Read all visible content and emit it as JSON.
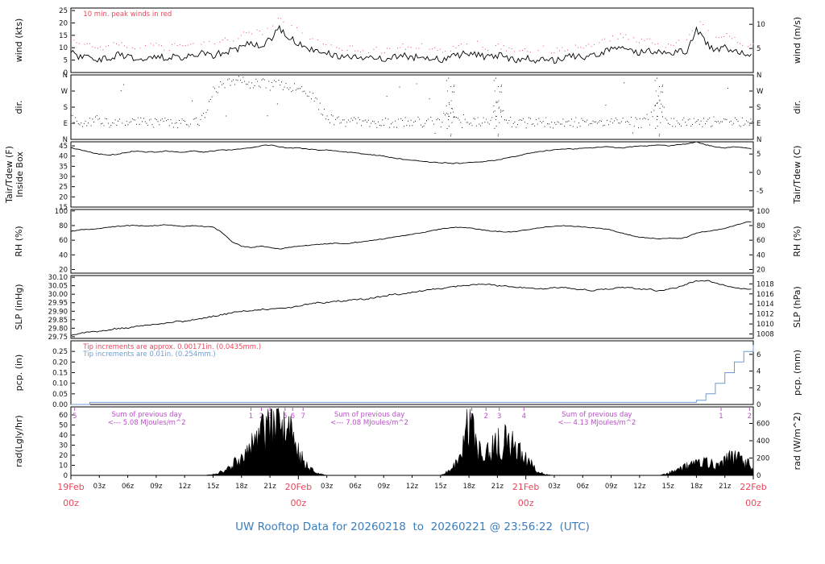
{
  "figure": {
    "title": "UW Rooftop Data for 20260218  to  20260221 @ 23:56:22  (UTC)",
    "title_color": "#3a7dbd",
    "background": "#ffffff"
  },
  "x_axis": {
    "days": [
      "19Feb",
      "20Feb",
      "21Feb",
      "22Feb"
    ],
    "day_hours": [
      0,
      24,
      48,
      72
    ],
    "day_sub": "00z",
    "hour_labels": [
      "03z",
      "06z",
      "09z",
      "12z",
      "15z",
      "18z",
      "21z"
    ],
    "hour_offsets": [
      3,
      6,
      9,
      12,
      15,
      18,
      21
    ],
    "day_color": "#e8485c",
    "hour_color": "#1a1a1a",
    "total_hours": 72
  },
  "chart_data": [
    {
      "id": "wind",
      "type": "line",
      "label_left": "wind (kts)",
      "label_right": "wind (m/s)",
      "ylim": [
        0,
        26
      ],
      "ticks_left": {
        "values": [
          0,
          5,
          10,
          15,
          20,
          25
        ],
        "labels": [
          "0",
          "5",
          "10",
          "15",
          "20",
          "25"
        ]
      },
      "ticks_right": {
        "values": [
          9.72,
          19.44
        ],
        "labels": [
          "5",
          "10"
        ]
      },
      "annotations": [
        {
          "text": "10 min. peak winds in red",
          "color": "#e8485c",
          "x_hour": 1.3,
          "row": 0
        }
      ],
      "series": [
        {
          "name": "wind-speed",
          "color": "#000000",
          "draw": "noisy-line",
          "jitter": 1.4,
          "values": [
            8,
            6,
            7,
            5,
            6,
            7,
            6,
            5,
            6,
            7,
            6,
            7,
            6,
            7,
            8,
            7,
            8,
            9,
            10,
            12,
            11,
            13,
            18,
            14,
            12,
            10,
            9,
            8,
            7,
            6,
            6,
            5,
            6,
            5,
            6,
            7,
            6,
            7,
            6,
            5,
            6,
            7,
            8,
            7,
            6,
            7,
            6,
            5,
            6,
            5,
            6,
            5,
            6,
            7,
            6,
            7,
            8,
            9,
            10,
            9,
            8,
            9,
            8,
            7,
            8,
            9,
            17,
            12,
            9,
            10,
            9,
            8,
            7
          ]
        },
        {
          "name": "peak-wind",
          "color": "#e8485c",
          "draw": "dots",
          "jitter": 1.2,
          "values": [
            12,
            10,
            10,
            9,
            10,
            11,
            9,
            8,
            10,
            11,
            9,
            10,
            9,
            11,
            12,
            10,
            12,
            13,
            14,
            16,
            15,
            17,
            22,
            18,
            16,
            14,
            12,
            11,
            10,
            9,
            9,
            8,
            9,
            8,
            9,
            10,
            9,
            10,
            9,
            8,
            9,
            10,
            12,
            11,
            9,
            10,
            9,
            8,
            9,
            8,
            9,
            8,
            9,
            10,
            9,
            10,
            12,
            13,
            14,
            13,
            12,
            13,
            11,
            10,
            12,
            13,
            21,
            16,
            13,
            14,
            13,
            11,
            10
          ]
        }
      ]
    },
    {
      "id": "dir",
      "type": "scatter",
      "label_left": "dir.",
      "label_right": "dir.",
      "ylim": [
        0,
        360
      ],
      "ticks_left": {
        "values": [
          0,
          90,
          180,
          270,
          360
        ],
        "labels": [
          "N",
          "E",
          "S",
          "W",
          "N"
        ]
      },
      "ticks_right": {
        "values": [
          0,
          90,
          180,
          270,
          360
        ],
        "labels": [
          "N",
          "E",
          "S",
          "W",
          "N"
        ]
      },
      "series": [
        {
          "name": "wind-direction",
          "color": "#000000",
          "draw": "scatter",
          "jitter": 28,
          "variable_hours": [
            40,
            45,
            62
          ],
          "values": [
            120,
            100,
            95,
            110,
            90,
            100,
            95,
            105,
            90,
            95,
            100,
            90,
            95,
            100,
            110,
            280,
            300,
            320,
            330,
            310,
            320,
            300,
            310,
            290,
            280,
            260,
            200,
            120,
            100,
            90,
            95,
            100,
            90,
            95,
            90,
            100,
            95,
            90,
            100,
            95,
            180,
            90,
            95,
            100,
            90,
            200,
            100,
            95,
            90,
            100,
            95,
            90,
            100,
            95,
            90,
            100,
            95,
            90,
            95,
            100,
            90,
            95,
            250,
            90,
            95,
            100,
            90,
            95,
            100,
            90,
            95,
            100,
            90
          ]
        }
      ]
    },
    {
      "id": "tair",
      "type": "line",
      "label_left": "Tair/Tdew (F)",
      "label_left2": "Inside Box",
      "label_right": "Tair/Tdew (C)",
      "ylim": [
        15,
        47
      ],
      "ticks_left": {
        "values": [
          15,
          20,
          25,
          30,
          35,
          40,
          45
        ],
        "labels": [
          "15",
          "20",
          "25",
          "30",
          "35",
          "40",
          "45"
        ]
      },
      "ticks_right": {
        "values": [
          23,
          32,
          41
        ],
        "labels": [
          "-5",
          "0",
          "5"
        ]
      },
      "series": [
        {
          "name": "air-temperature",
          "color": "#000000",
          "draw": "noisy-line",
          "jitter": 0.2,
          "values": [
            44,
            43,
            42,
            41,
            40.5,
            41,
            42,
            42.5,
            42,
            42,
            42.5,
            42,
            42,
            42.5,
            42,
            42.5,
            43,
            43,
            43.5,
            44,
            45,
            45.5,
            44.5,
            44,
            44,
            43.5,
            43,
            43,
            42.5,
            42,
            41.5,
            41,
            40.5,
            40,
            39,
            38.5,
            38,
            37.5,
            37,
            36.8,
            36.5,
            36.5,
            36.8,
            37,
            37.5,
            38,
            39,
            40,
            41,
            42,
            42.5,
            43,
            43.5,
            43.5,
            44,
            44,
            44.5,
            44.5,
            44,
            44.5,
            45,
            45,
            45.5,
            45,
            45.5,
            46,
            47,
            45.5,
            44.5,
            44,
            44.5,
            44,
            43.5
          ]
        }
      ]
    },
    {
      "id": "rh",
      "type": "line",
      "label_left": "RH (%)",
      "label_right": "RH (%)",
      "ylim": [
        15,
        102
      ],
      "ticks_left": {
        "values": [
          20,
          40,
          60,
          80,
          100
        ],
        "labels": [
          "20",
          "40",
          "60",
          "80",
          "100"
        ]
      },
      "ticks_right": {
        "values": [
          20,
          40,
          60,
          80,
          100
        ],
        "labels": [
          "20",
          "40",
          "60",
          "80",
          "100"
        ]
      },
      "series": [
        {
          "name": "relative-humidity",
          "color": "#000000",
          "draw": "noisy-line",
          "jitter": 0.5,
          "values": [
            72,
            74,
            75,
            76,
            78,
            79,
            80,
            80,
            79,
            80,
            81,
            80,
            79,
            80,
            79,
            78,
            70,
            58,
            52,
            50,
            52,
            50,
            48,
            50,
            52,
            53,
            54,
            55,
            56,
            55,
            57,
            58,
            60,
            62,
            64,
            66,
            68,
            70,
            73,
            75,
            77,
            78,
            77,
            75,
            73,
            72,
            71,
            72,
            74,
            76,
            78,
            79,
            80,
            79,
            78,
            77,
            76,
            74,
            70,
            67,
            64,
            63,
            62,
            63,
            62,
            64,
            70,
            72,
            74,
            76,
            80,
            84,
            86
          ]
        }
      ]
    },
    {
      "id": "slp",
      "type": "line",
      "label_left": "SLP (inHg)",
      "label_right": "SLP (hPa)",
      "ylim": [
        29.74,
        30.11
      ],
      "ticks_left": {
        "values": [
          29.75,
          29.8,
          29.85,
          29.9,
          29.95,
          30.0,
          30.05,
          30.1
        ],
        "labels": [
          "29.75",
          "29.80",
          "29.85",
          "29.90",
          "29.95",
          "30.00",
          "30.05",
          "30.10"
        ]
      },
      "ticks_right": {
        "values": [
          29.766,
          29.825,
          29.884,
          29.943,
          30.002,
          30.061
        ],
        "labels": [
          "1008",
          "1010",
          "1012",
          "1014",
          "1016",
          "1018"
        ]
      },
      "series": [
        {
          "name": "sea-level-pressure",
          "color": "#000000",
          "draw": "noisy-line",
          "jitter": 0.004,
          "values": [
            29.76,
            29.77,
            29.78,
            29.78,
            29.79,
            29.8,
            29.8,
            29.81,
            29.82,
            29.82,
            29.83,
            29.84,
            29.84,
            29.85,
            29.86,
            29.87,
            29.88,
            29.89,
            29.9,
            29.9,
            29.91,
            29.91,
            29.92,
            29.92,
            29.93,
            29.94,
            29.95,
            29.95,
            29.96,
            29.96,
            29.97,
            29.97,
            29.98,
            29.99,
            30.0,
            30.0,
            30.01,
            30.02,
            30.03,
            30.03,
            30.04,
            30.05,
            30.05,
            30.06,
            30.06,
            30.05,
            30.05,
            30.04,
            30.04,
            30.03,
            30.03,
            30.04,
            30.04,
            30.03,
            30.03,
            30.02,
            30.03,
            30.03,
            30.04,
            30.04,
            30.03,
            30.03,
            30.02,
            30.03,
            30.04,
            30.06,
            30.08,
            30.08,
            30.07,
            30.05,
            30.04,
            30.03,
            30.03
          ]
        }
      ]
    },
    {
      "id": "pcp",
      "type": "line",
      "label_left": "pcp. (in)",
      "label_right": "pcp. (mm)",
      "ylim": [
        0,
        0.3
      ],
      "ticks_left": {
        "values": [
          0,
          0.05,
          0.1,
          0.15,
          0.2,
          0.25
        ],
        "labels": [
          "0.00",
          "0.05",
          "0.10",
          "0.15",
          "0.20",
          "0.25"
        ]
      },
      "ticks_right": {
        "values": [
          0,
          0.0787,
          0.1575,
          0.2362
        ],
        "labels": [
          "0",
          "2",
          "4",
          "6"
        ]
      },
      "annotations": [
        {
          "text": "Tip increments are approx. 0.00171in. (0.0435mm.)",
          "color": "#e8485c",
          "x_hour": 1.3,
          "row": 0
        },
        {
          "text": "Tip increments are 0.01in. (0.254mm.)",
          "color": "#6f9bd2",
          "x_hour": 1.3,
          "row": 1
        }
      ],
      "series": [
        {
          "name": "precipitation",
          "color": "#6f9bd2",
          "draw": "steps",
          "values": [
            0,
            0,
            0.01,
            0.01,
            0.01,
            0.01,
            0.01,
            0.01,
            0.01,
            0.01,
            0.01,
            0.01,
            0.01,
            0.01,
            0.01,
            0.01,
            0.01,
            0.01,
            0.01,
            0.01,
            0.01,
            0.01,
            0.01,
            0.01,
            0.01,
            0.01,
            0.01,
            0.01,
            0.01,
            0.01,
            0.01,
            0.01,
            0.01,
            0.01,
            0.01,
            0.01,
            0.01,
            0.01,
            0.01,
            0.01,
            0.01,
            0.01,
            0.01,
            0.01,
            0.01,
            0.01,
            0.01,
            0.01,
            0.01,
            0.01,
            0.01,
            0.01,
            0.01,
            0.01,
            0.01,
            0.01,
            0.01,
            0.01,
            0.01,
            0.01,
            0.01,
            0.01,
            0.01,
            0.01,
            0.01,
            0.01,
            0.02,
            0.05,
            0.1,
            0.15,
            0.2,
            0.25,
            0.28
          ]
        }
      ]
    },
    {
      "id": "rad",
      "type": "area",
      "label_left": "rad(Lgly/hr)",
      "label_right": "rad (W/m^2)",
      "ylim": [
        0,
        68
      ],
      "ticks_left": {
        "values": [
          0,
          10,
          20,
          30,
          40,
          50,
          60
        ],
        "labels": [
          "0",
          "10",
          "20",
          "30",
          "40",
          "50",
          "60"
        ]
      },
      "ticks_right": {
        "values": [
          0,
          17.2,
          34.4,
          51.6
        ],
        "labels": [
          "0",
          "200",
          "400",
          "600"
        ]
      },
      "markers": {
        "color": "#bb4fc8",
        "items": [
          {
            "x_hour": 0.4,
            "t": "5"
          },
          {
            "x_hour": 19.0,
            "t": "1"
          },
          {
            "x_hour": 20.1,
            "t": "2"
          },
          {
            "x_hour": 21.0,
            "t": "3"
          },
          {
            "x_hour": 21.9,
            "t": "4"
          },
          {
            "x_hour": 22.6,
            "t": "5"
          },
          {
            "x_hour": 23.4,
            "t": "6"
          },
          {
            "x_hour": 24.5,
            "t": "7"
          },
          {
            "x_hour": 42.3,
            "t": "1"
          },
          {
            "x_hour": 43.8,
            "t": "2"
          },
          {
            "x_hour": 45.2,
            "t": "3"
          },
          {
            "x_hour": 47.8,
            "t": "4"
          },
          {
            "x_hour": 68.6,
            "t": "1"
          },
          {
            "x_hour": 71.6,
            "t": "2"
          }
        ]
      },
      "sums": {
        "color": "#bb4fc8",
        "items": [
          {
            "x_hour": 8.0,
            "line1": "Sum of previous day",
            "line2": "<--- 5.08 MJoules/m^2"
          },
          {
            "x_hour": 31.5,
            "line1": "Sum of previous day",
            "line2": "<--- 7.08 MJoules/m^2"
          },
          {
            "x_hour": 55.5,
            "line1": "Sum of previous day",
            "line2": "<--- 4.13 MJoules/m^2"
          }
        ]
      },
      "series": [
        {
          "name": "solar-radiation",
          "color": "#000000",
          "draw": "spiky-area",
          "values": [
            0,
            0,
            0,
            0,
            0,
            0,
            0,
            0,
            0,
            0,
            0,
            0,
            0,
            0,
            0,
            1,
            4,
            10,
            18,
            28,
            40,
            52,
            62,
            45,
            22,
            8,
            2,
            0,
            0,
            0,
            0,
            0,
            0,
            0,
            0,
            0,
            0,
            0,
            0,
            0,
            5,
            15,
            55,
            28,
            25,
            32,
            35,
            28,
            18,
            6,
            1,
            0,
            0,
            0,
            0,
            0,
            0,
            0,
            0,
            0,
            0,
            0,
            0,
            2,
            6,
            9,
            12,
            14,
            10,
            15,
            18,
            14,
            10
          ]
        }
      ]
    }
  ]
}
